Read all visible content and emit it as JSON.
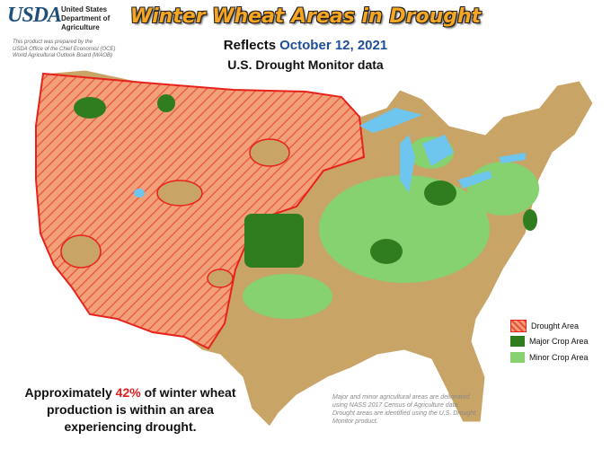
{
  "header": {
    "logo": "USDA",
    "agency": [
      "United States",
      "Department of",
      "Agriculture"
    ],
    "disclaimer": [
      "This product was prepared by the",
      "USDA Office of the Chief Economist (OCE)",
      "World Agricultural Outlook Board (WAOB)"
    ]
  },
  "title": "Winter Wheat Areas in Drought",
  "subtitle": {
    "prefix": "Reflects",
    "date": "October 12, 2021",
    "line2": "U.S. Drought Monitor data"
  },
  "legend": {
    "items": [
      "Drought Area",
      "Major Crop Area",
      "Minor Crop Area"
    ]
  },
  "summary": {
    "before": "Approximately",
    "highlight": "42%",
    "after": "of winter wheat production is within an area experiencing drought."
  },
  "footnote": "Major and minor agricultural areas are delineated using NASS 2017 Census of Agriculture data.  Drought areas are identified using the U.S. Drought Monitor product."
}
